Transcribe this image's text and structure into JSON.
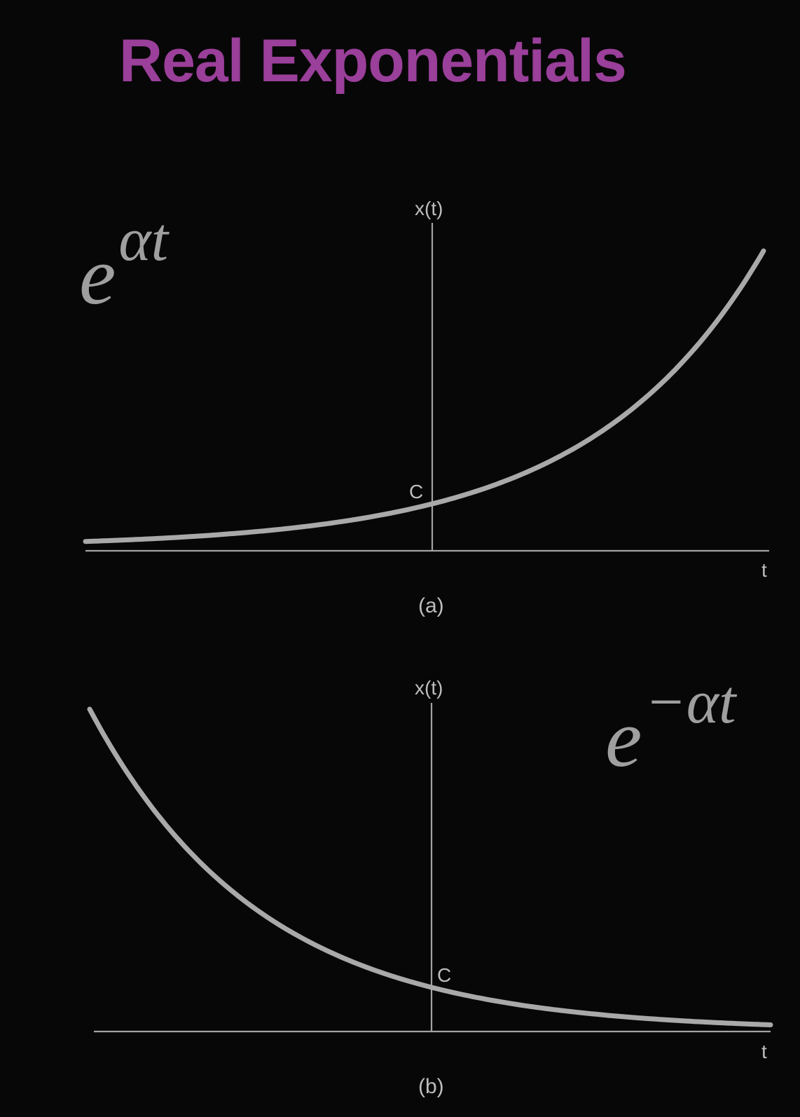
{
  "title": "Real Exponentials",
  "colors": {
    "background": "#070707",
    "title": "#9a3f9a",
    "curve": "#a9a9a9",
    "axis": "#a3a3a3",
    "label": "#bdbdbd",
    "formula": "#9f9f9f"
  },
  "plots": [
    {
      "formula_base": "e",
      "formula_exponent": "αt",
      "y_axis_label": "x(t)",
      "x_axis_label": "t",
      "intercept_label": "C",
      "caption": "(a)",
      "chart_data": {
        "type": "line",
        "function": "C·e^(αt)",
        "trend": "growing",
        "intercept": "C"
      }
    },
    {
      "formula_base": "e",
      "formula_exponent": "−αt",
      "y_axis_label": "x(t)",
      "x_axis_label": "t",
      "intercept_label": "C",
      "caption": "(b)",
      "chart_data": {
        "type": "line",
        "function": "C·e^(−αt)",
        "trend": "decaying",
        "intercept": "C"
      }
    }
  ]
}
